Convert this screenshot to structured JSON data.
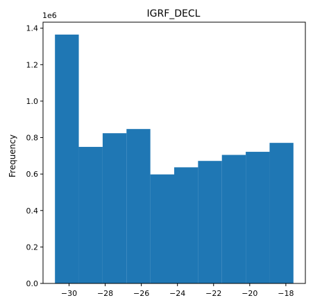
{
  "chart_data": {
    "type": "bar",
    "title": "IGRF_DECL",
    "xlabel": "",
    "ylabel": "Frequency",
    "offset_label": "1e6",
    "bin_edges": [
      -30.78,
      -29.46,
      -28.14,
      -26.82,
      -25.5,
      -24.18,
      -22.86,
      -21.54,
      -20.22,
      -18.9,
      -17.58
    ],
    "values": [
      1.365,
      0.749,
      0.824,
      0.847,
      0.598,
      0.637,
      0.672,
      0.705,
      0.722,
      0.771
    ],
    "xlim": [
      -31.44,
      -16.92
    ],
    "ylim": [
      0,
      1.433
    ],
    "xticks": [
      -30,
      -28,
      -26,
      -24,
      -22,
      -20,
      -18
    ],
    "xtick_labels": [
      "−30",
      "−28",
      "−26",
      "−24",
      "−22",
      "−20",
      "−18"
    ],
    "yticks": [
      0.0,
      0.2,
      0.4,
      0.6,
      0.8,
      1.0,
      1.2,
      1.4
    ],
    "ytick_labels": [
      "0.0",
      "0.2",
      "0.4",
      "0.6",
      "0.8",
      "1.0",
      "1.2",
      "1.4"
    ],
    "bar_color": "#1f77b4",
    "grid": false,
    "legend": "none"
  }
}
